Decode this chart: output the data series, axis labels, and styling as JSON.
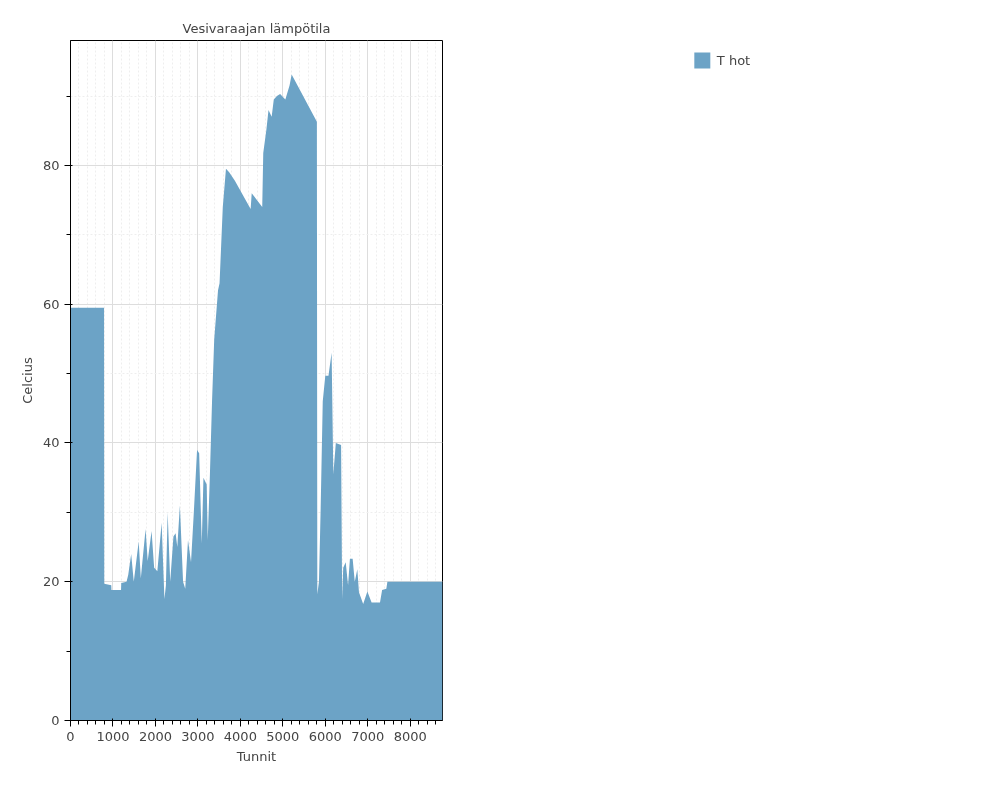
{
  "chart_data": {
    "type": "area",
    "title": "Vesivaraajan lämpötila",
    "xlabel": "Tunnit",
    "ylabel": "Celcius",
    "x": [
      0,
      790,
      795,
      960,
      965,
      1190,
      1195,
      1320,
      1360,
      1429,
      1490,
      1606,
      1656,
      1692,
      1768,
      1818,
      1909,
      1970,
      2045,
      2146,
      2212,
      2247,
      2288,
      2348,
      2424,
      2475,
      2515,
      2576,
      2651,
      2702,
      2767,
      2838,
      2904,
      2980,
      3030,
      3091,
      3131,
      3207,
      3232,
      3283,
      3333,
      3384,
      3474,
      3510,
      3586,
      3661,
      3737,
      3871,
      4242,
      4267,
      4515,
      4539,
      4614,
      4663,
      4737,
      4787,
      4861,
      4936,
      5059,
      5158,
      5208,
      5802,
      5812,
      5851,
      5891,
      5940,
      6000,
      6075,
      6149,
      6189,
      6248,
      6372,
      6397,
      6422,
      6481,
      6536,
      6580,
      6644,
      6694,
      6754,
      6793,
      6892,
      6991,
      7090,
      7288,
      7338,
      7437,
      7462,
      8760
    ],
    "series": [
      {
        "name": "T hot",
        "color": "#6ca3c6",
        "values": [
          59.5,
          59.5,
          19.7,
          19.5,
          18.8,
          18.8,
          19.8,
          20,
          21,
          24,
          20,
          25.8,
          20.5,
          22.8,
          27.6,
          23,
          27.3,
          22,
          21.5,
          28.5,
          17.5,
          19.5,
          30,
          20,
          26.5,
          27,
          25,
          31,
          20,
          19,
          26,
          22.8,
          30,
          39,
          38.5,
          25.5,
          35,
          34,
          26,
          35.5,
          46,
          54.9,
          62,
          63,
          74,
          79.5,
          79,
          77.8,
          73.7,
          76,
          74,
          81.8,
          85.2,
          88,
          87,
          89.5,
          90,
          90.3,
          89.5,
          91.5,
          93.1,
          86.3,
          18.2,
          20,
          30.6,
          46,
          49.7,
          49.7,
          53,
          35.5,
          40,
          39.7,
          17.5,
          22,
          22.8,
          19.5,
          23.3,
          23.3,
          20,
          21.8,
          18.5,
          16.8,
          18.6,
          17,
          17,
          18.8,
          19,
          20,
          20
        ]
      }
    ],
    "xlim": [
      0,
      8760
    ],
    "ylim": [
      0,
      98
    ],
    "xticks": [
      0,
      {
        "value": 200,
        "label": null
      },
      {
        "value": 400,
        "label": null
      },
      {
        "value": 600,
        "label": null
      },
      {
        "value": 800,
        "label": null
      },
      1000,
      {
        "value": 1200,
        "label": null
      },
      {
        "value": 1400,
        "label": null
      },
      {
        "value": 1600,
        "label": null
      },
      {
        "value": 1800,
        "label": null
      },
      2000,
      {
        "value": 2200,
        "label": null
      },
      {
        "value": 2400,
        "label": null
      },
      {
        "value": 2600,
        "label": null
      },
      {
        "value": 2800,
        "label": null
      },
      3000,
      {
        "value": 3200,
        "label": null
      },
      {
        "value": 3400,
        "label": null
      },
      {
        "value": 3600,
        "label": null
      },
      {
        "value": 3800,
        "label": null
      },
      4000,
      {
        "value": 4200,
        "label": null
      },
      {
        "value": 4400,
        "label": null
      },
      {
        "value": 4600,
        "label": null
      },
      {
        "value": 4800,
        "label": null
      },
      5000,
      {
        "value": 5200,
        "label": null
      },
      {
        "value": 5400,
        "label": null
      },
      {
        "value": 5600,
        "label": null
      },
      {
        "value": 5800,
        "label": null
      },
      6000,
      {
        "value": 6200,
        "label": null
      },
      {
        "value": 6400,
        "label": null
      },
      {
        "value": 6600,
        "label": null
      },
      {
        "value": 6800,
        "label": null
      },
      7000,
      {
        "value": 7200,
        "label": null
      },
      {
        "value": 7400,
        "label": null
      },
      {
        "value": 7600,
        "label": null
      },
      {
        "value": 7800,
        "label": null
      },
      8000,
      {
        "value": 8200,
        "label": null
      },
      {
        "value": 8400,
        "label": null
      },
      {
        "value": 8600,
        "label": null
      }
    ],
    "yticks": [
      0,
      {
        "value": 10,
        "label": null
      },
      20,
      {
        "value": 30,
        "label": null
      },
      40,
      {
        "value": 50,
        "label": null
      },
      60,
      {
        "value": 70,
        "label": null
      },
      80,
      {
        "value": 90,
        "label": null
      }
    ],
    "grid": true,
    "legend": "top right"
  }
}
